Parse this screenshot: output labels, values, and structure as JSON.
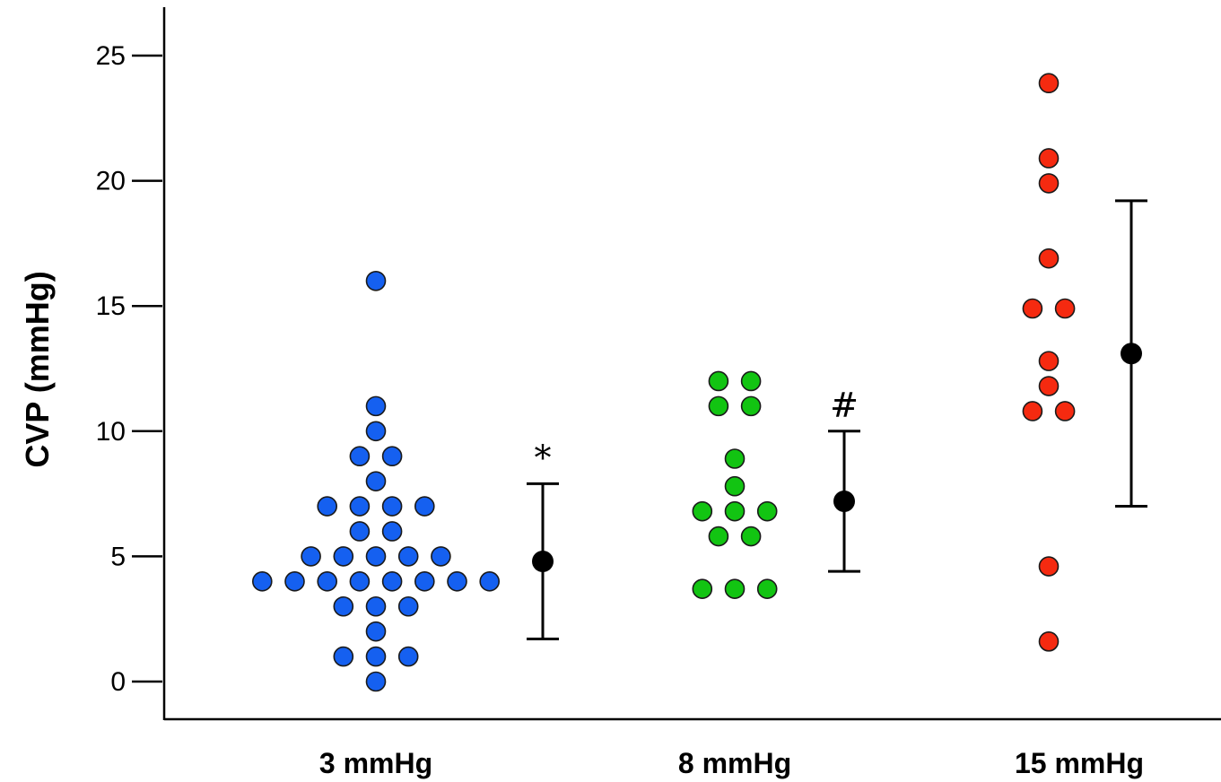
{
  "chart_data": {
    "type": "scatter",
    "title": "",
    "ylabel": "CVP (mmHg)",
    "xlabel": "",
    "ylim": [
      -1.5,
      27
    ],
    "yticks": [
      0,
      5,
      10,
      15,
      20,
      25
    ],
    "grid": false,
    "groups": [
      {
        "category": "3 mmHg",
        "color": "#1560f0",
        "points": [
          0,
          1,
          1,
          1,
          2,
          3,
          3,
          3,
          4,
          4,
          4,
          4,
          4,
          4,
          4,
          4,
          5,
          5,
          5,
          5,
          5,
          6,
          6,
          7,
          7,
          7,
          7,
          8,
          9,
          9,
          10,
          11,
          16
        ],
        "mean": 4.8,
        "error": [
          1.7,
          7.9
        ],
        "annotation": "*"
      },
      {
        "category": "8 mmHg",
        "color": "#12c412",
        "points": [
          3.7,
          3.7,
          3.7,
          5.8,
          5.8,
          6.8,
          6.8,
          6.8,
          7.8,
          8.9,
          11,
          11,
          12,
          12
        ],
        "mean": 7.2,
        "error": [
          4.4,
          10
        ],
        "annotation": "#"
      },
      {
        "category": "15 mmHg",
        "color": "#f52a10",
        "points": [
          1.6,
          4.6,
          10.8,
          10.8,
          11.8,
          12.8,
          14.9,
          14.9,
          16.9,
          19.9,
          20.9,
          23.9
        ],
        "mean": 13.1,
        "error": [
          7,
          19.2
        ],
        "annotation": ""
      }
    ]
  }
}
